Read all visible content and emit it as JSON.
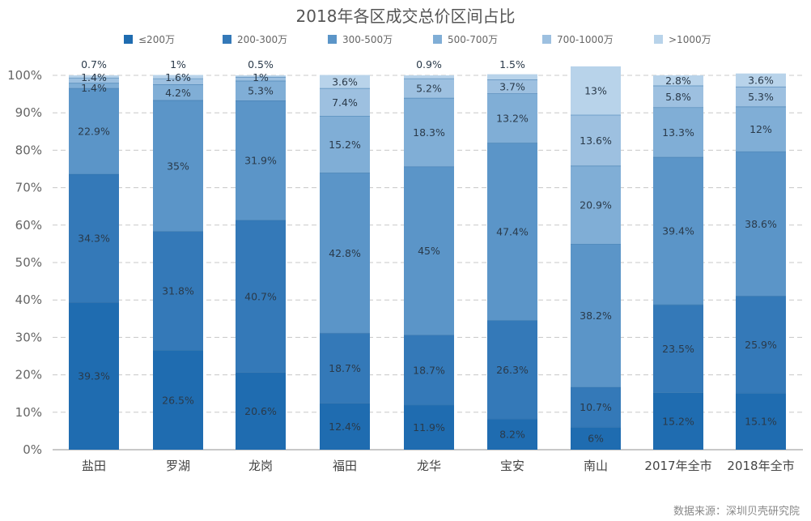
{
  "chart_data": {
    "type": "bar",
    "stacked": true,
    "title": "2018年各区成交总价区间占比",
    "xlabel": "",
    "ylabel": "",
    "ylim": [
      0,
      100
    ],
    "yticks": [
      "0%",
      "10%",
      "20%",
      "30%",
      "40%",
      "50%",
      "60%",
      "70%",
      "80%",
      "90%",
      "100%"
    ],
    "grid": true,
    "legend_position": "top",
    "categories": [
      "盐田",
      "罗湖",
      "龙岗",
      "福田",
      "龙华",
      "宝安",
      "南山",
      "2017年全市",
      "2018年全市"
    ],
    "series": [
      {
        "name": "≤200万",
        "color": "#1f6cb0",
        "values": [
          39.3,
          26.5,
          20.6,
          12.4,
          11.9,
          8.2,
          6,
          15.2,
          15.1
        ],
        "labels": [
          "39.3%",
          "26.5%",
          "20.6%",
          "12.4%",
          "11.9%",
          "8.2%",
          "6%",
          "15.2%",
          "15.1%"
        ]
      },
      {
        "name": "200-300万",
        "color": "#3479b8",
        "values": [
          34.3,
          31.8,
          40.7,
          18.7,
          18.7,
          26.3,
          10.7,
          23.5,
          25.9
        ],
        "labels": [
          "34.3%",
          "31.8%",
          "40.7%",
          "18.7%",
          "18.7%",
          "26.3%",
          "10.7%",
          "23.5%",
          "25.9%"
        ]
      },
      {
        "name": "300-500万",
        "color": "#5b95c8",
        "values": [
          22.9,
          35,
          31.9,
          42.8,
          45,
          47.4,
          38.2,
          39.4,
          38.6
        ],
        "labels": [
          "22.9%",
          "35%",
          "31.9%",
          "42.8%",
          "45%",
          "47.4%",
          "38.2%",
          "39.4%",
          "38.6%"
        ]
      },
      {
        "name": "500-700万",
        "color": "#80aed6",
        "values": [
          1.4,
          4.2,
          5.3,
          15.2,
          18.3,
          13.2,
          20.9,
          13.3,
          12
        ],
        "labels": [
          "1.4%",
          "4.2%",
          "5.3%",
          "15.2%",
          "18.3%",
          "13.2%",
          "20.9%",
          "13.3%",
          "12%"
        ]
      },
      {
        "name": "700-1000万",
        "color": "#9dc0e0",
        "values": [
          1.4,
          1.6,
          1,
          7.4,
          5.2,
          3.7,
          13.6,
          5.8,
          5.3
        ],
        "labels": [
          "1.4%",
          "1.6%",
          "1%",
          "7.4%",
          "5.2%",
          "3.7%",
          "13.6%",
          "5.8%",
          "5.3%"
        ]
      },
      {
        "name": ">1000万",
        "color": "#b8d3ea",
        "values": [
          0.7,
          1,
          0.5,
          3.6,
          0.9,
          1.5,
          13,
          2.8,
          3.6
        ],
        "labels": [
          "0.7%",
          "1%",
          "0.5%",
          "3.6%",
          "0.9%",
          "1.5%",
          "13%",
          "2.8%",
          "3.6%"
        ]
      }
    ],
    "annotations": [
      "数据来源：深圳贝壳研究院"
    ]
  }
}
